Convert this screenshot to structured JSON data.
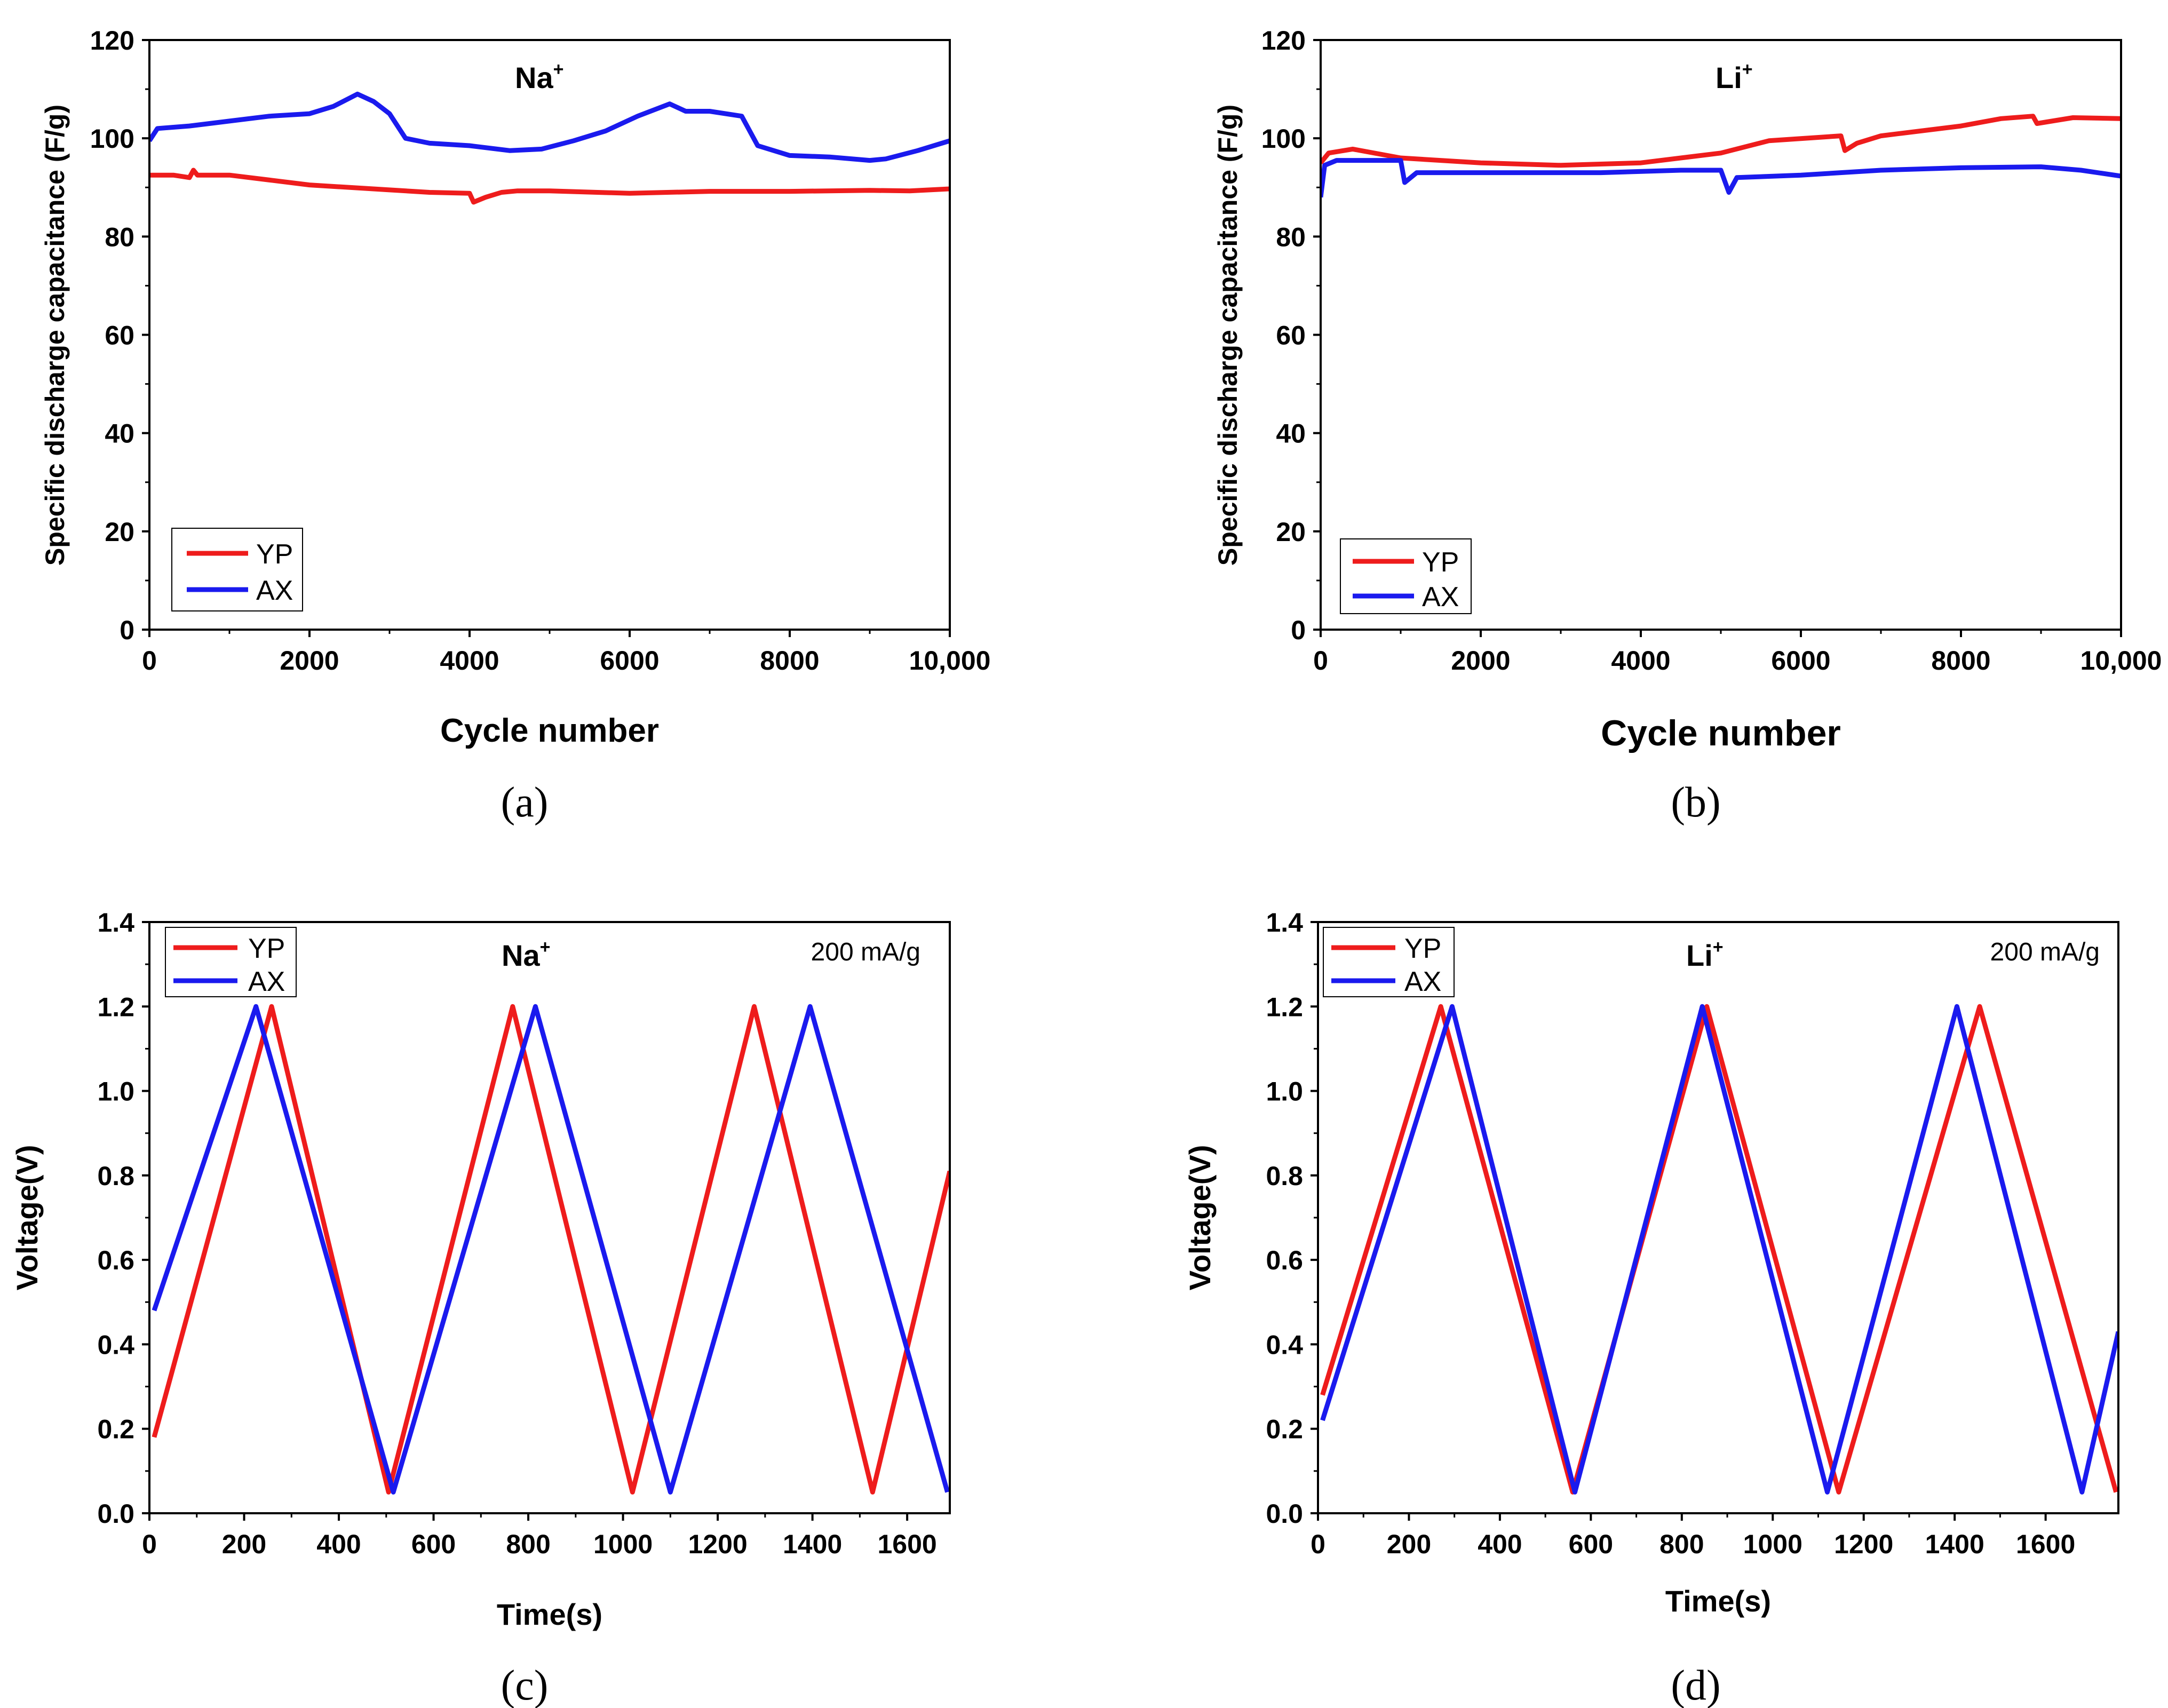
{
  "figure": {
    "panels": [
      "a",
      "b",
      "c",
      "d"
    ]
  },
  "colors": {
    "YP": "#ee1c1c",
    "AX": "#1a1aee",
    "axis": "#000000"
  },
  "chart_data": [
    {
      "id": "a",
      "type": "line",
      "caption": "(a)",
      "ion": "Na",
      "ion_sup": "+",
      "xlabel": "Cycle number",
      "ylabel": "Specific discharge capacitance (F/g)",
      "xlim": [
        0,
        10000
      ],
      "ylim": [
        0,
        120
      ],
      "x_ticks": [
        0,
        2000,
        4000,
        6000,
        8000,
        10000
      ],
      "x_tick_labels": [
        "0",
        "2000",
        "4000",
        "6000",
        "8000",
        "10,000"
      ],
      "y_ticks": [
        0,
        20,
        40,
        60,
        80,
        100,
        120
      ],
      "y_tick_labels": [
        "0",
        "20",
        "40",
        "60",
        "80",
        "100",
        "120"
      ],
      "legend": {
        "labels": [
          "YP",
          "AX"
        ],
        "position": "bottom-left"
      },
      "series": [
        {
          "name": "YP",
          "x": [
            0,
            300,
            500,
            550,
            600,
            1000,
            1500,
            2000,
            3000,
            3500,
            4000,
            4050,
            4200,
            4400,
            4600,
            5000,
            6000,
            7000,
            8000,
            9000,
            9500,
            10000
          ],
          "y": [
            92.5,
            92.5,
            92,
            93.5,
            92.5,
            92.5,
            91.5,
            90.5,
            89.5,
            89,
            88.8,
            87,
            88,
            89,
            89.3,
            89.3,
            88.8,
            89.2,
            89.2,
            89.4,
            89.3,
            89.7
          ]
        },
        {
          "name": "AX",
          "x": [
            0,
            100,
            500,
            1000,
            1500,
            2000,
            2300,
            2600,
            2800,
            3000,
            3200,
            3500,
            4000,
            4500,
            4900,
            5300,
            5700,
            6100,
            6500,
            6700,
            7000,
            7400,
            7600,
            8000,
            8500,
            9000,
            9200,
            9600,
            10000
          ],
          "y": [
            99.5,
            102,
            102.5,
            103.5,
            104.5,
            105,
            106.5,
            109,
            107.5,
            105,
            100,
            99,
            98.5,
            97.5,
            97.8,
            99.5,
            101.5,
            104.5,
            107,
            105.5,
            105.5,
            104.5,
            98.5,
            96.5,
            96.2,
            95.5,
            95.8,
            97.5,
            99.5
          ]
        }
      ]
    },
    {
      "id": "b",
      "type": "line",
      "caption": "(b)",
      "ion": "Li",
      "ion_sup": "+",
      "xlabel": "Cycle number",
      "ylabel": "Specific discharge capacitance (F/g)",
      "xlim": [
        0,
        10000
      ],
      "ylim": [
        0,
        120
      ],
      "x_ticks": [
        0,
        2000,
        4000,
        6000,
        8000,
        10000
      ],
      "x_tick_labels": [
        "0",
        "2000",
        "4000",
        "6000",
        "8000",
        "10,000"
      ],
      "y_ticks": [
        0,
        20,
        40,
        60,
        80,
        100,
        120
      ],
      "y_tick_labels": [
        "0",
        "20",
        "40",
        "60",
        "80",
        "100",
        "120"
      ],
      "legend": {
        "labels": [
          "YP",
          "AX"
        ],
        "position": "bottom-left"
      },
      "series": [
        {
          "name": "YP",
          "x": [
            0,
            100,
            400,
            1000,
            2000,
            3000,
            4000,
            5000,
            5600,
            6500,
            6550,
            6700,
            7000,
            8000,
            8500,
            8900,
            8950,
            9400,
            10000
          ],
          "y": [
            95,
            97,
            97.8,
            96,
            95,
            94.5,
            95,
            97,
            99.5,
            100.5,
            97.5,
            99,
            100.5,
            102.5,
            104,
            104.5,
            103,
            104.2,
            104
          ]
        },
        {
          "name": "AX",
          "x": [
            0,
            50,
            200,
            500,
            1000,
            1050,
            1200,
            1500,
            2500,
            3500,
            4500,
            5000,
            5100,
            5200,
            6000,
            7000,
            8000,
            9000,
            9500,
            10000
          ],
          "y": [
            88,
            94.5,
            95.5,
            95.5,
            95.5,
            91,
            93,
            93,
            93,
            93,
            93.5,
            93.5,
            89,
            92,
            92.5,
            93.5,
            94,
            94.2,
            93.5,
            92.3
          ]
        }
      ]
    },
    {
      "id": "c",
      "type": "line",
      "caption": "(c)",
      "ion": "Na",
      "ion_sup": "+",
      "note": "200 mA/g",
      "xlabel": "Time(s)",
      "ylabel": "Voltage(V)",
      "xlim": [
        0,
        1690
      ],
      "ylim": [
        0,
        1.4
      ],
      "x_ticks": [
        0,
        200,
        400,
        600,
        800,
        1000,
        1200,
        1400,
        1600
      ],
      "x_tick_labels": [
        "0",
        "200",
        "400",
        "600",
        "800",
        "1000",
        "1200",
        "1400",
        "1600"
      ],
      "y_ticks": [
        0,
        0.2,
        0.4,
        0.6,
        0.8,
        1.0,
        1.2,
        1.4
      ],
      "y_tick_labels": [
        "0.0",
        "0.2",
        "0.4",
        "0.6",
        "0.8",
        "1.0",
        "1.2",
        "1.4"
      ],
      "legend": {
        "labels": [
          "YP",
          "AX"
        ],
        "position": "top-left"
      },
      "series": [
        {
          "name": "YP",
          "x": [
            10,
            258,
            505,
            767,
            1020,
            1277,
            1527,
            1690
          ],
          "y": [
            0.18,
            1.2,
            0.05,
            1.2,
            0.05,
            1.2,
            0.05,
            0.81
          ]
        },
        {
          "name": "AX",
          "x": [
            10,
            225,
            515,
            815,
            1100,
            1395,
            1685
          ],
          "y": [
            0.48,
            1.2,
            0.05,
            1.2,
            0.05,
            1.2,
            0.05
          ]
        }
      ]
    },
    {
      "id": "d",
      "type": "line",
      "caption": "(d)",
      "ion": "Li",
      "ion_sup": "+",
      "note": "200 mA/g",
      "xlabel": "Time(s)",
      "ylabel": "Voltage(V)",
      "xlim": [
        0,
        1760
      ],
      "ylim": [
        0,
        1.4
      ],
      "x_ticks": [
        0,
        200,
        400,
        600,
        800,
        1000,
        1200,
        1400,
        1600
      ],
      "x_tick_labels": [
        "0",
        "200",
        "400",
        "600",
        "800",
        "1000",
        "1200",
        "1400",
        "1600"
      ],
      "y_ticks": [
        0,
        0.2,
        0.4,
        0.6,
        0.8,
        1.0,
        1.2,
        1.4
      ],
      "y_tick_labels": [
        "0.0",
        "0.2",
        "0.4",
        "0.6",
        "0.8",
        "1.0",
        "1.2",
        "1.4"
      ],
      "legend": {
        "labels": [
          "YP",
          "AX"
        ],
        "position": "top-left"
      },
      "series": [
        {
          "name": "YP",
          "x": [
            10,
            270,
            560,
            855,
            1145,
            1455,
            1755
          ],
          "y": [
            0.28,
            1.2,
            0.05,
            1.2,
            0.05,
            1.2,
            0.05
          ]
        },
        {
          "name": "AX",
          "x": [
            10,
            295,
            565,
            845,
            1120,
            1405,
            1680,
            1760
          ],
          "y": [
            0.22,
            1.2,
            0.05,
            1.2,
            0.05,
            1.2,
            0.05,
            0.43
          ]
        }
      ]
    }
  ]
}
